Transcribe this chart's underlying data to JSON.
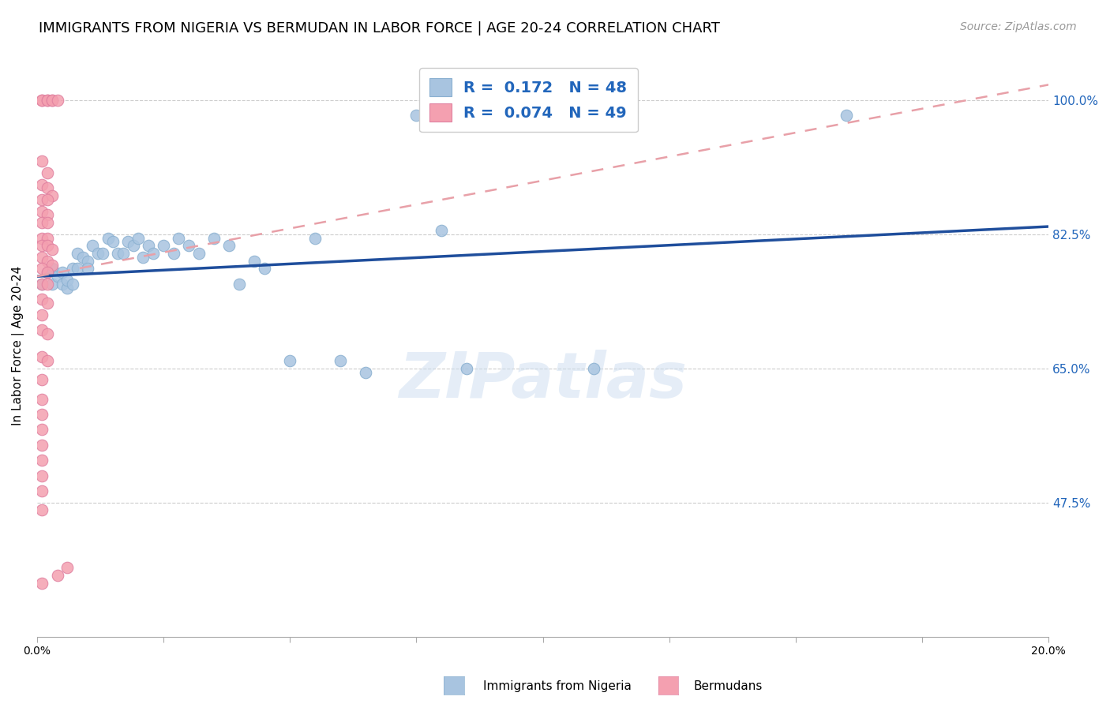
{
  "title": "IMMIGRANTS FROM NIGERIA VS BERMUDAN IN LABOR FORCE | AGE 20-24 CORRELATION CHART",
  "source": "Source: ZipAtlas.com",
  "ylabel": "In Labor Force | Age 20-24",
  "yticks": [
    47.5,
    65.0,
    82.5,
    100.0
  ],
  "ytick_labels": [
    "47.5%",
    "65.0%",
    "82.5%",
    "100.0%"
  ],
  "xmin": 0.0,
  "xmax": 0.2,
  "ymin": 0.3,
  "ymax": 1.06,
  "legend_r_nigeria": "0.172",
  "legend_n_nigeria": "48",
  "legend_r_bermudan": "0.074",
  "legend_n_bermudan": "49",
  "nigeria_color": "#a8c4e0",
  "bermudan_color": "#f4a0b0",
  "nigeria_line_color": "#1f4e9c",
  "bermudan_line_color": "#e8a0a8",
  "nigeria_scatter": [
    [
      0.001,
      0.76
    ],
    [
      0.002,
      0.775
    ],
    [
      0.003,
      0.76
    ],
    [
      0.003,
      0.78
    ],
    [
      0.004,
      0.77
    ],
    [
      0.005,
      0.775
    ],
    [
      0.005,
      0.76
    ],
    [
      0.006,
      0.755
    ],
    [
      0.006,
      0.765
    ],
    [
      0.007,
      0.78
    ],
    [
      0.007,
      0.76
    ],
    [
      0.008,
      0.8
    ],
    [
      0.008,
      0.78
    ],
    [
      0.009,
      0.795
    ],
    [
      0.01,
      0.79
    ],
    [
      0.01,
      0.78
    ],
    [
      0.011,
      0.81
    ],
    [
      0.012,
      0.8
    ],
    [
      0.013,
      0.8
    ],
    [
      0.014,
      0.82
    ],
    [
      0.015,
      0.815
    ],
    [
      0.016,
      0.8
    ],
    [
      0.017,
      0.8
    ],
    [
      0.018,
      0.815
    ],
    [
      0.019,
      0.81
    ],
    [
      0.02,
      0.82
    ],
    [
      0.021,
      0.795
    ],
    [
      0.022,
      0.81
    ],
    [
      0.023,
      0.8
    ],
    [
      0.025,
      0.81
    ],
    [
      0.027,
      0.8
    ],
    [
      0.028,
      0.82
    ],
    [
      0.03,
      0.81
    ],
    [
      0.032,
      0.8
    ],
    [
      0.035,
      0.82
    ],
    [
      0.038,
      0.81
    ],
    [
      0.04,
      0.76
    ],
    [
      0.043,
      0.79
    ],
    [
      0.045,
      0.78
    ],
    [
      0.05,
      0.66
    ],
    [
      0.055,
      0.82
    ],
    [
      0.06,
      0.66
    ],
    [
      0.065,
      0.645
    ],
    [
      0.075,
      0.98
    ],
    [
      0.08,
      0.83
    ],
    [
      0.085,
      0.65
    ],
    [
      0.11,
      0.65
    ],
    [
      0.16,
      0.98
    ]
  ],
  "bermudan_scatter": [
    [
      0.001,
      1.0
    ],
    [
      0.001,
      1.0
    ],
    [
      0.002,
      1.0
    ],
    [
      0.002,
      1.0
    ],
    [
      0.003,
      1.0
    ],
    [
      0.003,
      1.0
    ],
    [
      0.004,
      1.0
    ],
    [
      0.001,
      0.92
    ],
    [
      0.002,
      0.905
    ],
    [
      0.001,
      0.89
    ],
    [
      0.002,
      0.885
    ],
    [
      0.003,
      0.875
    ],
    [
      0.001,
      0.87
    ],
    [
      0.002,
      0.87
    ],
    [
      0.001,
      0.855
    ],
    [
      0.002,
      0.85
    ],
    [
      0.001,
      0.84
    ],
    [
      0.002,
      0.84
    ],
    [
      0.001,
      0.82
    ],
    [
      0.002,
      0.82
    ],
    [
      0.001,
      0.81
    ],
    [
      0.002,
      0.81
    ],
    [
      0.003,
      0.805
    ],
    [
      0.001,
      0.795
    ],
    [
      0.002,
      0.79
    ],
    [
      0.003,
      0.785
    ],
    [
      0.001,
      0.78
    ],
    [
      0.002,
      0.775
    ],
    [
      0.001,
      0.76
    ],
    [
      0.002,
      0.76
    ],
    [
      0.001,
      0.74
    ],
    [
      0.002,
      0.735
    ],
    [
      0.001,
      0.72
    ],
    [
      0.001,
      0.7
    ],
    [
      0.002,
      0.695
    ],
    [
      0.001,
      0.665
    ],
    [
      0.002,
      0.66
    ],
    [
      0.001,
      0.635
    ],
    [
      0.001,
      0.61
    ],
    [
      0.001,
      0.59
    ],
    [
      0.001,
      0.57
    ],
    [
      0.001,
      0.55
    ],
    [
      0.001,
      0.53
    ],
    [
      0.001,
      0.51
    ],
    [
      0.001,
      0.49
    ],
    [
      0.001,
      0.465
    ],
    [
      0.006,
      0.39
    ],
    [
      0.004,
      0.38
    ],
    [
      0.001,
      0.37
    ]
  ],
  "watermark": "ZIPatlas",
  "title_fontsize": 13,
  "axis_label_fontsize": 11,
  "tick_fontsize": 10,
  "source_fontsize": 10
}
